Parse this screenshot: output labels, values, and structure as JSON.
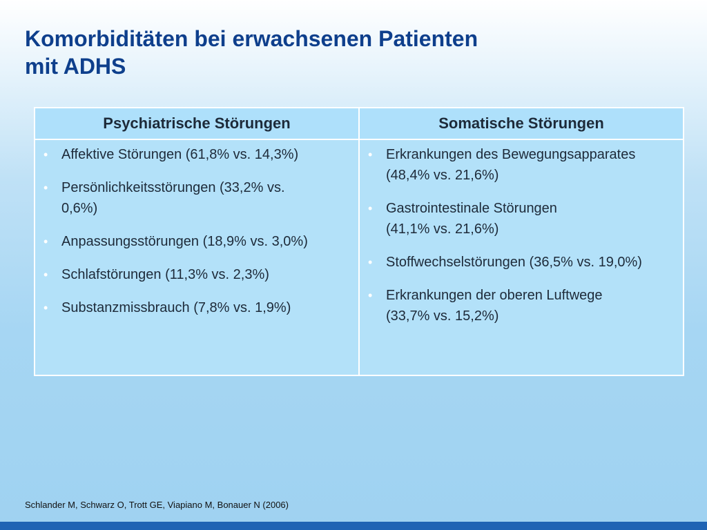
{
  "title": {
    "line1": "Komorbiditäten bei erwachsenen Patienten",
    "line2": "mit ADHS"
  },
  "table": {
    "columns": [
      {
        "header": "Psychiatrische Störungen",
        "items": [
          {
            "line1": "Affektive Störungen (61,8% vs. 14,3%)",
            "line2": ""
          },
          {
            "line1": "Persönlichkeitsstörungen (33,2% vs.",
            "line2": "0,6%)"
          },
          {
            "line1": "Anpassungsstörungen (18,9% vs. 3,0%)",
            "line2": ""
          },
          {
            "line1": "Schlafstörungen (11,3% vs. 2,3%)",
            "line2": ""
          },
          {
            "line1": "Substanzmissbrauch (7,8% vs. 1,9%)",
            "line2": ""
          }
        ]
      },
      {
        "header": "Somatische Störungen",
        "items": [
          {
            "line1": "Erkrankungen des Bewegungsapparates",
            "line2": "(48,4%  vs. 21,6%)"
          },
          {
            "line1": "Gastrointestinale Störungen",
            "line2": "(41,1% vs. 21,6%)"
          },
          {
            "line1": "Stoffwechselstörungen (36,5% vs. 19,0%)",
            "line2": ""
          },
          {
            "line1": "Erkrankungen der oberen Luftwege",
            "line2": "(33,7% vs. 15,2%)"
          }
        ]
      }
    ]
  },
  "footer": {
    "citation": "Schlander M, Schwarz O, Trott GE, Viapiano M, Bonauer N  (2006)"
  },
  "colors": {
    "title": "#0e3f8c",
    "header_bg": "#aee0fb",
    "body_bg": "#b3e1f9",
    "bottom_bar": "#1f64b4"
  }
}
